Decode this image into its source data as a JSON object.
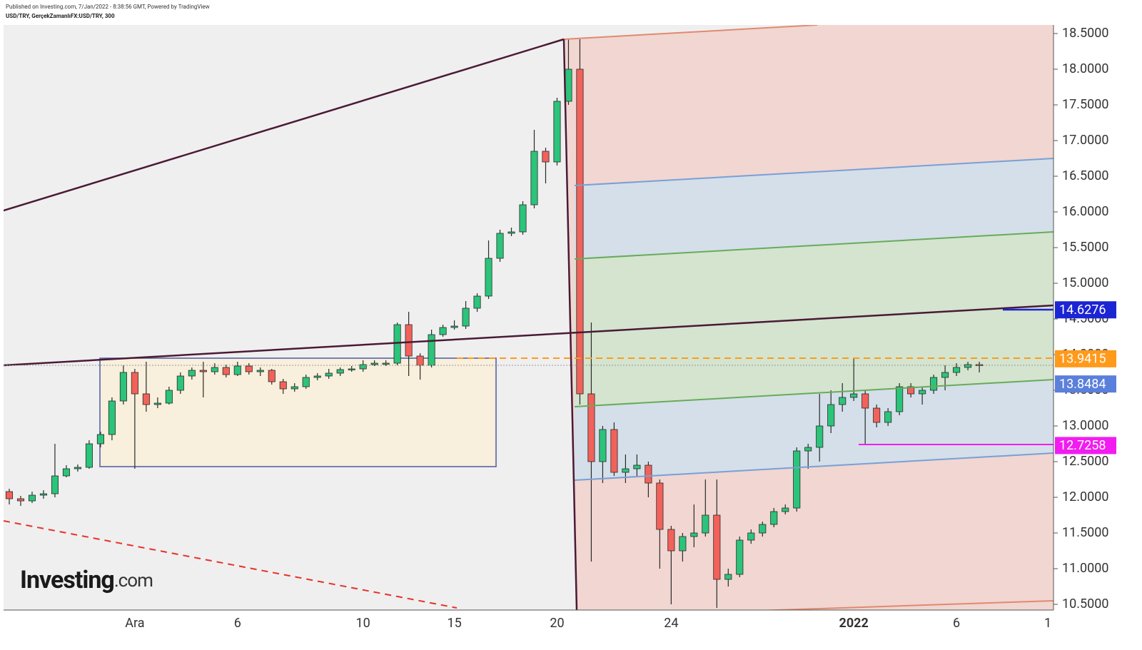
{
  "header": {
    "published": "Published on Investing.com, 7/Jan/2022 - 8:38:56 GMT, Powered by TradingView",
    "symbol": "USD/TRY, GerçekZamanlıFX:USD/TRY, 300"
  },
  "logo": {
    "brand": "Investing",
    "suffix": ".com"
  },
  "chart_data": {
    "type": "candlestick",
    "categories": [
      null,
      null,
      null,
      null,
      null,
      null,
      null,
      null,
      null,
      null,
      null,
      "Ara",
      null,
      null,
      null,
      null,
      null,
      null,
      null,
      null,
      "6",
      null,
      null,
      null,
      null,
      null,
      null,
      null,
      null,
      null,
      null,
      "10",
      null,
      null,
      null,
      null,
      null,
      null,
      null,
      "15",
      null,
      null,
      null,
      null,
      null,
      null,
      null,
      null,
      "20",
      null,
      null,
      null,
      null,
      null,
      null,
      null,
      null,
      null,
      "24",
      null,
      null,
      null,
      null,
      null,
      null,
      null,
      null,
      null,
      null,
      null,
      null,
      null,
      null,
      null,
      "2022",
      null,
      null,
      null,
      null,
      null,
      null,
      null,
      null,
      "6",
      null,
      null,
      null,
      null,
      null,
      null,
      null,
      "1"
    ],
    "open": [
      12.08,
      11.98,
      11.95,
      12.03,
      12.05,
      12.3,
      12.4,
      12.42,
      12.75,
      12.88,
      13.35,
      13.75,
      13.45,
      13.3,
      13.32,
      13.5,
      13.7,
      13.78,
      13.76,
      13.82,
      13.72,
      13.84,
      13.76,
      13.78,
      13.62,
      13.52,
      13.55,
      13.68,
      13.7,
      13.74,
      13.79,
      13.8,
      13.86,
      13.88,
      13.88,
      14.42,
      13.98,
      13.85,
      14.28,
      14.38,
      14.4,
      14.65,
      14.82,
      15.35,
      15.7,
      15.72,
      16.1,
      16.85,
      16.7,
      17.55,
      18.0,
      13.45,
      12.5,
      12.95,
      12.35,
      12.4,
      12.45,
      12.2,
      11.55,
      11.25,
      11.45,
      11.5,
      11.75,
      10.85,
      10.92,
      11.4,
      11.5,
      11.62,
      11.8,
      11.85,
      12.65,
      12.7,
      13.0,
      13.3,
      13.4,
      13.45,
      13.25,
      13.05,
      13.2,
      13.55,
      13.45,
      13.5,
      13.68,
      13.75,
      13.82,
      13.86,
      null,
      null,
      null,
      null,
      null,
      null
    ],
    "high": [
      12.12,
      12.02,
      12.08,
      12.1,
      12.75,
      12.45,
      12.46,
      12.8,
      12.92,
      13.4,
      13.85,
      13.8,
      13.9,
      13.4,
      13.55,
      13.75,
      13.82,
      13.9,
      13.88,
      13.86,
      13.9,
      13.88,
      13.82,
      13.8,
      13.66,
      13.6,
      13.72,
      13.74,
      13.8,
      13.82,
      13.84,
      13.92,
      13.92,
      13.92,
      14.45,
      14.6,
      14.02,
      14.35,
      14.42,
      14.48,
      14.75,
      14.86,
      15.6,
      15.75,
      15.78,
      16.15,
      17.15,
      16.9,
      17.6,
      18.42,
      18.42,
      14.45,
      13.0,
      13.05,
      12.6,
      12.6,
      12.5,
      12.25,
      11.6,
      11.5,
      11.9,
      12.25,
      12.25,
      11.0,
      11.45,
      11.55,
      11.66,
      11.85,
      11.9,
      12.7,
      12.75,
      13.45,
      13.5,
      13.6,
      13.95,
      13.5,
      13.3,
      13.25,
      13.6,
      13.6,
      13.55,
      13.72,
      13.85,
      13.88,
      13.9,
      13.9,
      null,
      null,
      null,
      null,
      null,
      null
    ],
    "low": [
      11.9,
      11.88,
      11.92,
      11.98,
      12.0,
      12.28,
      12.36,
      12.4,
      12.7,
      12.8,
      13.3,
      12.4,
      13.2,
      13.25,
      13.3,
      13.45,
      13.65,
      13.4,
      13.72,
      13.68,
      13.7,
      13.72,
      13.7,
      13.58,
      13.45,
      13.48,
      13.52,
      13.64,
      13.66,
      13.7,
      13.76,
      13.76,
      13.84,
      13.84,
      13.85,
      13.7,
      13.65,
      13.82,
      14.25,
      14.35,
      14.36,
      14.6,
      14.78,
      15.3,
      15.66,
      15.68,
      16.05,
      16.4,
      16.65,
      17.5,
      13.3,
      11.1,
      12.2,
      12.3,
      12.2,
      12.3,
      12.0,
      11.0,
      10.5,
      11.1,
      11.3,
      11.45,
      10.45,
      10.75,
      10.88,
      11.35,
      11.45,
      11.58,
      11.76,
      11.8,
      12.4,
      12.5,
      12.9,
      13.2,
      13.35,
      12.75,
      12.98,
      13.0,
      13.15,
      13.4,
      13.3,
      13.45,
      13.5,
      13.7,
      13.78,
      13.75,
      null,
      null,
      null,
      null,
      null,
      null
    ],
    "close": [
      11.98,
      11.95,
      12.03,
      12.05,
      12.3,
      12.4,
      12.42,
      12.75,
      12.88,
      13.35,
      13.75,
      13.45,
      13.3,
      13.32,
      13.5,
      13.7,
      13.78,
      13.76,
      13.82,
      13.72,
      13.84,
      13.76,
      13.78,
      13.62,
      13.52,
      13.55,
      13.68,
      13.7,
      13.74,
      13.79,
      13.8,
      13.86,
      13.88,
      13.88,
      14.42,
      13.98,
      13.85,
      14.28,
      14.38,
      14.4,
      14.65,
      14.82,
      15.35,
      15.7,
      15.72,
      16.1,
      16.85,
      16.7,
      17.55,
      18.0,
      13.45,
      12.5,
      12.95,
      12.35,
      12.4,
      12.45,
      12.2,
      11.55,
      11.25,
      11.45,
      11.5,
      11.75,
      10.85,
      10.92,
      11.4,
      11.5,
      11.62,
      11.8,
      11.85,
      12.65,
      12.7,
      13.0,
      13.3,
      13.4,
      13.45,
      13.25,
      13.05,
      13.2,
      13.55,
      13.45,
      13.5,
      13.68,
      13.75,
      13.82,
      13.86,
      13.85,
      null,
      null,
      null,
      null,
      null,
      null
    ],
    "up_color": "#2bc47a",
    "down_color": "#f2625a",
    "ylim": [
      10.42,
      18.62
    ],
    "yticks": [
      {
        "value": 10.5,
        "label": "10.5000"
      },
      {
        "value": 11,
        "label": "11.0000"
      },
      {
        "value": 11.5,
        "label": "11.5000"
      },
      {
        "value": 12,
        "label": "12.0000"
      },
      {
        "value": 12.5,
        "label": "12.5000"
      },
      {
        "value": 13,
        "label": "13.0000"
      },
      {
        "value": 13.5,
        "label": "13.5000"
      },
      {
        "value": 14,
        "label": "14.0000"
      },
      {
        "value": 14.5,
        "label": "14.5000"
      },
      {
        "value": 15,
        "label": "15.0000"
      },
      {
        "value": 15.5,
        "label": "15.5000"
      },
      {
        "value": 16,
        "label": "16.0000"
      },
      {
        "value": 16.5,
        "label": "16.5000"
      },
      {
        "value": 17,
        "label": "17.0000"
      },
      {
        "value": 17.5,
        "label": "17.5000"
      },
      {
        "value": 18,
        "label": "18.0000"
      },
      {
        "value": 18.5,
        "label": "18.5000"
      }
    ],
    "price_labels": [
      {
        "value": 14.6276,
        "color": "#1b25d4"
      },
      {
        "value": 13.9415,
        "color": "#ff9a1a"
      },
      {
        "value": 13.8484,
        "color": "#5a80dc"
      },
      {
        "value": 12.7258,
        "color": "#f21cf0"
      }
    ]
  }
}
